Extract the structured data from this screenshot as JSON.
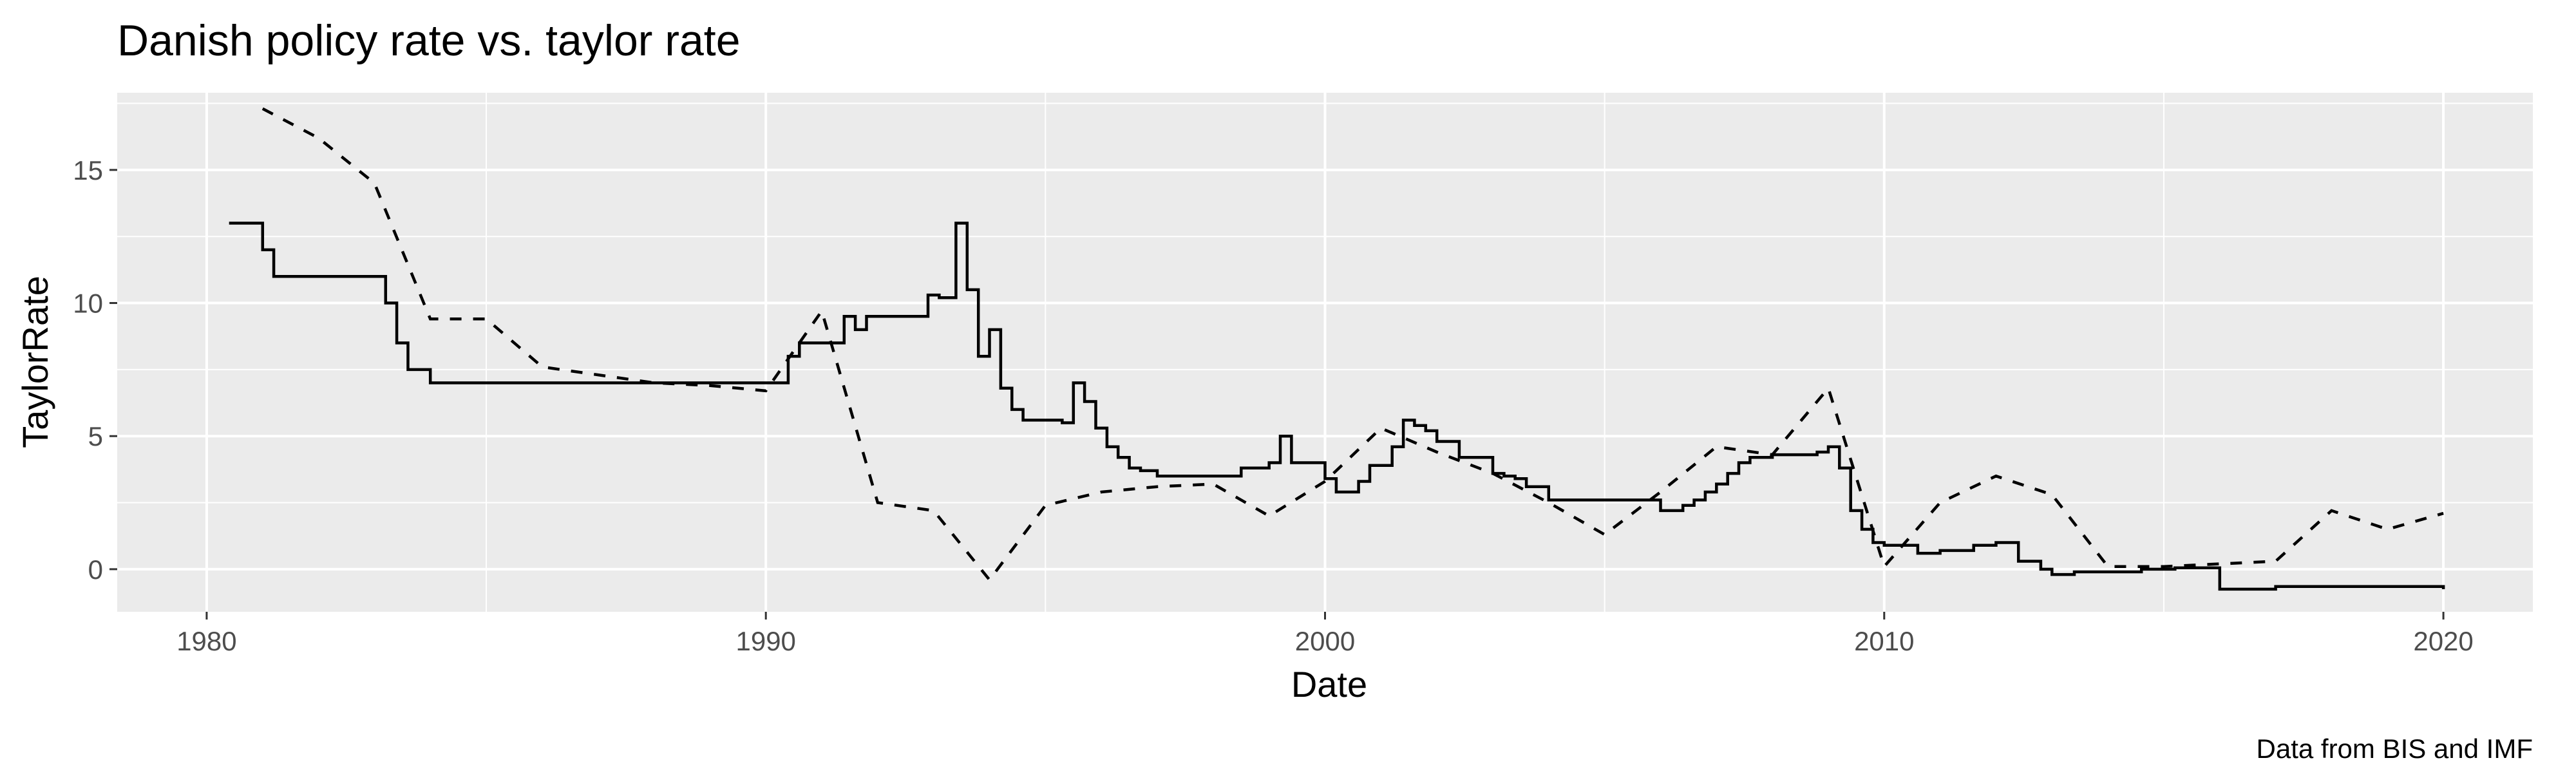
{
  "chart_data": {
    "type": "line",
    "title": "Danish policy rate vs. taylor rate",
    "xlabel": "Date",
    "ylabel": "TaylorRate",
    "caption": "Data from BIS and IMF",
    "xlim": [
      1978.4,
      2021.6
    ],
    "ylim": [
      -1.6,
      17.9
    ],
    "x_ticks": [
      1980,
      1990,
      2000,
      2010,
      2020
    ],
    "y_ticks": [
      0,
      5,
      10,
      15
    ],
    "grid": true,
    "background": "#ebebeb",
    "gridline_color": "#ffffff",
    "line_color": "#000000",
    "series": [
      {
        "style": "step",
        "linetype": "solid",
        "x": [
          1980.4,
          1980.8,
          1981.0,
          1981.2,
          1983.0,
          1983.2,
          1983.4,
          1983.6,
          1984.0,
          1990.2,
          1990.4,
          1990.6,
          1991.2,
          1991.4,
          1991.6,
          1991.8,
          1992.7,
          1992.9,
          1993.1,
          1993.4,
          1993.6,
          1993.8,
          1994.0,
          1994.2,
          1994.4,
          1994.6,
          1995.3,
          1995.5,
          1995.7,
          1995.9,
          1996.1,
          1996.3,
          1996.5,
          1996.7,
          1997.0,
          1998.0,
          1998.5,
          1998.7,
          1999.0,
          1999.2,
          1999.4,
          2000.0,
          2000.2,
          2000.4,
          2000.6,
          2000.8,
          2001.2,
          2001.4,
          2001.6,
          2001.8,
          2002.0,
          2002.4,
          2003.0,
          2003.2,
          2003.4,
          2003.6,
          2004.0,
          2006.0,
          2006.2,
          2006.4,
          2006.6,
          2006.8,
          2007.0,
          2007.2,
          2007.4,
          2007.6,
          2008.0,
          2008.6,
          2008.8,
          2009.0,
          2009.2,
          2009.4,
          2009.6,
          2009.8,
          2010.0,
          2010.6,
          2011.0,
          2011.6,
          2012.0,
          2012.4,
          2012.8,
          2013.0,
          2013.4,
          2014.6,
          2015.0,
          2015.2,
          2016.0,
          2017.0,
          2019.0,
          2019.8,
          2020.0
        ],
        "y": [
          13.0,
          13.0,
          12.0,
          11.0,
          11.0,
          10.0,
          8.5,
          7.5,
          7.0,
          7.0,
          8.0,
          8.5,
          8.5,
          9.5,
          9.0,
          9.5,
          9.5,
          10.3,
          10.2,
          13.0,
          10.5,
          8.0,
          9.0,
          6.8,
          6.0,
          5.6,
          5.5,
          7.0,
          6.3,
          5.3,
          4.6,
          4.2,
          3.8,
          3.7,
          3.5,
          3.5,
          3.8,
          3.8,
          4.0,
          5.0,
          4.0,
          3.4,
          2.9,
          2.9,
          3.3,
          3.9,
          4.6,
          5.6,
          5.4,
          5.2,
          4.8,
          4.2,
          3.6,
          3.5,
          3.4,
          3.1,
          2.6,
          2.2,
          2.2,
          2.4,
          2.6,
          2.9,
          3.2,
          3.6,
          4.0,
          4.2,
          4.3,
          4.3,
          4.4,
          4.6,
          3.8,
          2.2,
          1.5,
          1.0,
          0.9,
          0.6,
          0.7,
          0.9,
          1.0,
          0.3,
          0.0,
          -0.2,
          -0.1,
          0.0,
          0.0,
          0.05,
          -0.75,
          -0.65,
          -0.65,
          -0.65,
          -0.75
        ],
        "end_x": 2020.0
      },
      {
        "style": "line",
        "linetype": "dashed",
        "x": [
          1981.0,
          1982.0,
          1983.0,
          1984.0,
          1985.0,
          1986.0,
          1987.0,
          1988.0,
          1989.0,
          1990.0,
          1991.0,
          1992.0,
          1993.0,
          1994.0,
          1995.0,
          1996.0,
          1997.0,
          1998.0,
          1999.0,
          2000.0,
          2001.0,
          2002.0,
          2003.0,
          2004.0,
          2005.0,
          2006.0,
          2007.0,
          2008.0,
          2009.0,
          2010.0,
          2011.0,
          2012.0,
          2013.0,
          2014.0,
          2015.0,
          2016.0,
          2017.0,
          2018.0,
          2019.0,
          2020.0
        ],
        "y": [
          17.3,
          16.2,
          14.5,
          9.4,
          9.4,
          7.6,
          7.3,
          7.0,
          6.9,
          6.7,
          9.7,
          2.5,
          2.2,
          -0.4,
          2.4,
          2.9,
          3.1,
          3.2,
          2.0,
          3.3,
          5.3,
          4.4,
          3.6,
          2.5,
          1.3,
          2.9,
          4.6,
          4.3,
          6.8,
          0.1,
          2.5,
          3.5,
          2.8,
          0.1,
          0.1,
          0.2,
          0.3,
          2.2,
          1.5,
          2.1
        ]
      }
    ]
  }
}
